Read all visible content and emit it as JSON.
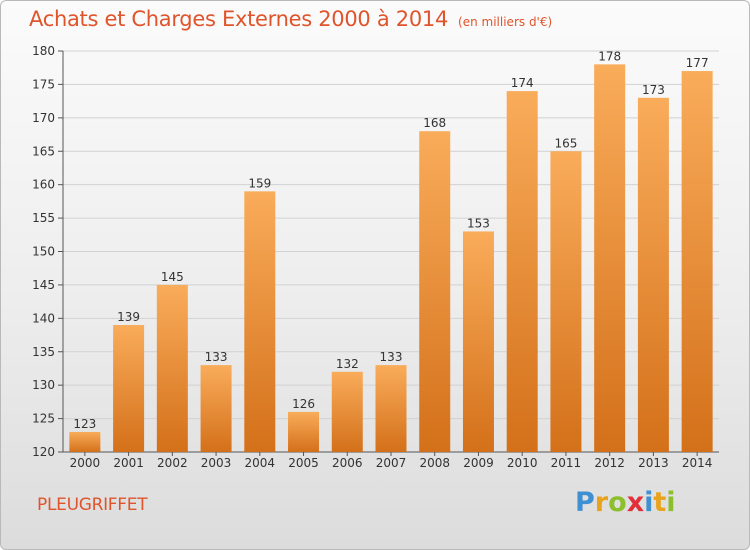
{
  "header": {
    "title": "Achats et Charges Externes 2000 à 2014",
    "subtitle": "(en milliers d'€)"
  },
  "footer": {
    "commune": "PLEUGRIFFET",
    "brand": "Proxiti"
  },
  "colors": {
    "bar_light": "#f7a44f",
    "bar_dark": "#d9761e",
    "title": "#e0542b"
  },
  "chart_data": {
    "type": "bar",
    "categories": [
      "2000",
      "2001",
      "2002",
      "2003",
      "2004",
      "2005",
      "2006",
      "2007",
      "2008",
      "2009",
      "2010",
      "2011",
      "2012",
      "2013",
      "2014"
    ],
    "values": [
      123,
      139,
      145,
      133,
      159,
      126,
      132,
      133,
      168,
      153,
      174,
      165,
      178,
      173,
      177
    ],
    "title": "Achats et Charges Externes 2000 à 2014",
    "subtitle": "(en milliers d'€)",
    "ylim": [
      120,
      180
    ],
    "yticks": [
      120,
      125,
      130,
      135,
      140,
      145,
      150,
      155,
      160,
      165,
      170,
      175,
      180
    ],
    "grid": true,
    "data_labels": true
  }
}
